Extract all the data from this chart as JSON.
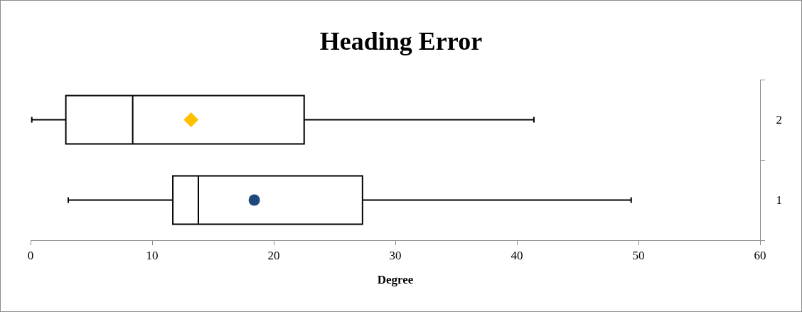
{
  "chart_data": {
    "type": "box",
    "title": "Heading Error",
    "xlabel": "Degree",
    "orientation": "horizontal",
    "categories": [
      "2",
      "1"
    ],
    "xlim": [
      0,
      60
    ],
    "xticks": [
      0,
      10,
      20,
      30,
      40,
      50,
      60
    ],
    "grid": false,
    "legend": false,
    "boxes": [
      {
        "low": 0.1,
        "q1": 2.9,
        "median": 8.4,
        "q3": 22.5,
        "high": 41.4
      },
      {
        "low": 3.1,
        "q1": 11.7,
        "median": 13.8,
        "q3": 27.3,
        "high": 49.4
      }
    ],
    "series": [
      {
        "type": "scatter",
        "color": "#ffc000",
        "marker": "diamond",
        "values": [
          13.2,
          null
        ]
      },
      {
        "type": "scatter",
        "color": "#1f497d",
        "marker": "circle",
        "values": [
          null,
          18.4
        ]
      }
    ]
  }
}
